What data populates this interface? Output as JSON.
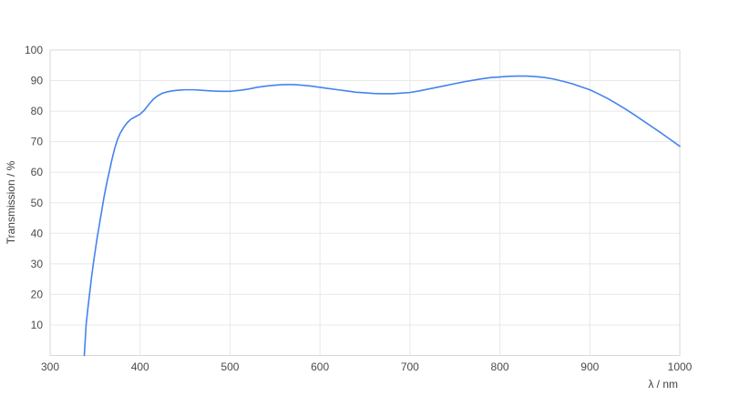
{
  "chart_data": {
    "type": "line",
    "title": "",
    "xlabel": "λ / nm",
    "ylabel": "Transmission / %",
    "xlim": [
      300,
      1000
    ],
    "ylim": [
      0,
      100
    ],
    "x_ticks": [
      300,
      400,
      500,
      600,
      700,
      800,
      900,
      1000
    ],
    "y_ticks": [
      10,
      20,
      30,
      40,
      50,
      60,
      70,
      80,
      90,
      100
    ],
    "grid": true,
    "legend_position": "none",
    "line_color": "#4583ec",
    "grid_color": "#e8e8e8",
    "border_color": "#d7d7d7",
    "text_color": "#4a4a4a",
    "background": "#ffffff",
    "series": [
      {
        "name": "Transmission",
        "points": [
          [
            338,
            0
          ],
          [
            339,
            5
          ],
          [
            340,
            10
          ],
          [
            342,
            15.5
          ],
          [
            344,
            20.5
          ],
          [
            346,
            25.5
          ],
          [
            348,
            30
          ],
          [
            350,
            34
          ],
          [
            352,
            38
          ],
          [
            354,
            41.5
          ],
          [
            356,
            45
          ],
          [
            358,
            48.5
          ],
          [
            360,
            52
          ],
          [
            363,
            56.5
          ],
          [
            366,
            60.5
          ],
          [
            369,
            64.5
          ],
          [
            372,
            68
          ],
          [
            375,
            70.8
          ],
          [
            378,
            72.8
          ],
          [
            382,
            74.8
          ],
          [
            386,
            76.3
          ],
          [
            390,
            77.4
          ],
          [
            395,
            78.2
          ],
          [
            400,
            79
          ],
          [
            405,
            80.4
          ],
          [
            410,
            82.3
          ],
          [
            415,
            84
          ],
          [
            420,
            85.1
          ],
          [
            425,
            85.9
          ],
          [
            430,
            86.3
          ],
          [
            435,
            86.6
          ],
          [
            440,
            86.8
          ],
          [
            445,
            86.9
          ],
          [
            450,
            87
          ],
          [
            460,
            87
          ],
          [
            470,
            86.8
          ],
          [
            480,
            86.6
          ],
          [
            490,
            86.5
          ],
          [
            500,
            86.5
          ],
          [
            510,
            86.8
          ],
          [
            520,
            87.2
          ],
          [
            530,
            87.8
          ],
          [
            540,
            88.2
          ],
          [
            550,
            88.5
          ],
          [
            560,
            88.7
          ],
          [
            570,
            88.7
          ],
          [
            580,
            88.5
          ],
          [
            590,
            88.2
          ],
          [
            600,
            87.8
          ],
          [
            610,
            87.4
          ],
          [
            620,
            87
          ],
          [
            630,
            86.6
          ],
          [
            640,
            86.2
          ],
          [
            650,
            86
          ],
          [
            660,
            85.8
          ],
          [
            670,
            85.7
          ],
          [
            680,
            85.7
          ],
          [
            690,
            85.9
          ],
          [
            700,
            86.1
          ],
          [
            710,
            86.6
          ],
          [
            720,
            87.2
          ],
          [
            730,
            87.8
          ],
          [
            740,
            88.4
          ],
          [
            750,
            89
          ],
          [
            760,
            89.6
          ],
          [
            770,
            90.1
          ],
          [
            780,
            90.6
          ],
          [
            790,
            91
          ],
          [
            800,
            91.2
          ],
          [
            810,
            91.4
          ],
          [
            820,
            91.5
          ],
          [
            830,
            91.5
          ],
          [
            840,
            91.3
          ],
          [
            850,
            91
          ],
          [
            860,
            90.5
          ],
          [
            870,
            89.8
          ],
          [
            880,
            89
          ],
          [
            890,
            88
          ],
          [
            900,
            87
          ],
          [
            910,
            85.6
          ],
          [
            920,
            84.1
          ],
          [
            930,
            82.4
          ],
          [
            940,
            80.6
          ],
          [
            950,
            78.7
          ],
          [
            960,
            76.7
          ],
          [
            970,
            74.7
          ],
          [
            980,
            72.7
          ],
          [
            990,
            70.6
          ],
          [
            1000,
            68.5
          ]
        ]
      }
    ]
  }
}
